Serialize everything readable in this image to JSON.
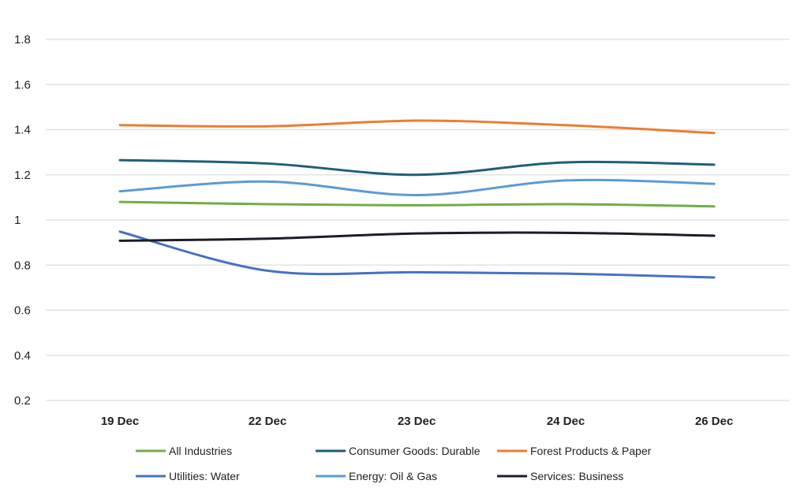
{
  "chart_data": {
    "type": "line",
    "title": "",
    "xlabel": "",
    "ylabel": "",
    "categories": [
      "19 Dec",
      "22 Dec",
      "23 Dec",
      "24 Dec",
      "26 Dec"
    ],
    "ylim": [
      0.2,
      1.8
    ],
    "yticks": [
      "1.8",
      "1.6",
      "1.4",
      "1.2",
      "1",
      "0.8",
      "0.6",
      "0.4",
      "0.2"
    ],
    "grid": true,
    "legend_position": "bottom",
    "series": [
      {
        "name": "All Industries",
        "color": "#70ad47",
        "values": [
          1.08,
          1.07,
          1.065,
          1.07,
          1.06
        ]
      },
      {
        "name": "Consumer Goods: Durable",
        "color": "#1f5f7a",
        "values": [
          1.265,
          1.25,
          1.2,
          1.255,
          1.245
        ]
      },
      {
        "name": "Forest Products & Paper",
        "color": "#ed7d31",
        "values": [
          1.42,
          1.415,
          1.44,
          1.42,
          1.385
        ]
      },
      {
        "name": "Utilities: Water",
        "color": "#4472c4",
        "values": [
          0.948,
          0.775,
          0.768,
          0.762,
          0.745
        ]
      },
      {
        "name": "Energy: Oil & Gas",
        "color": "#5b9bd5",
        "values": [
          1.127,
          1.17,
          1.11,
          1.175,
          1.16
        ]
      },
      {
        "name": "Services: Business",
        "color": "#1c1c2b",
        "values": [
          0.908,
          0.917,
          0.94,
          0.943,
          0.93
        ]
      }
    ]
  }
}
